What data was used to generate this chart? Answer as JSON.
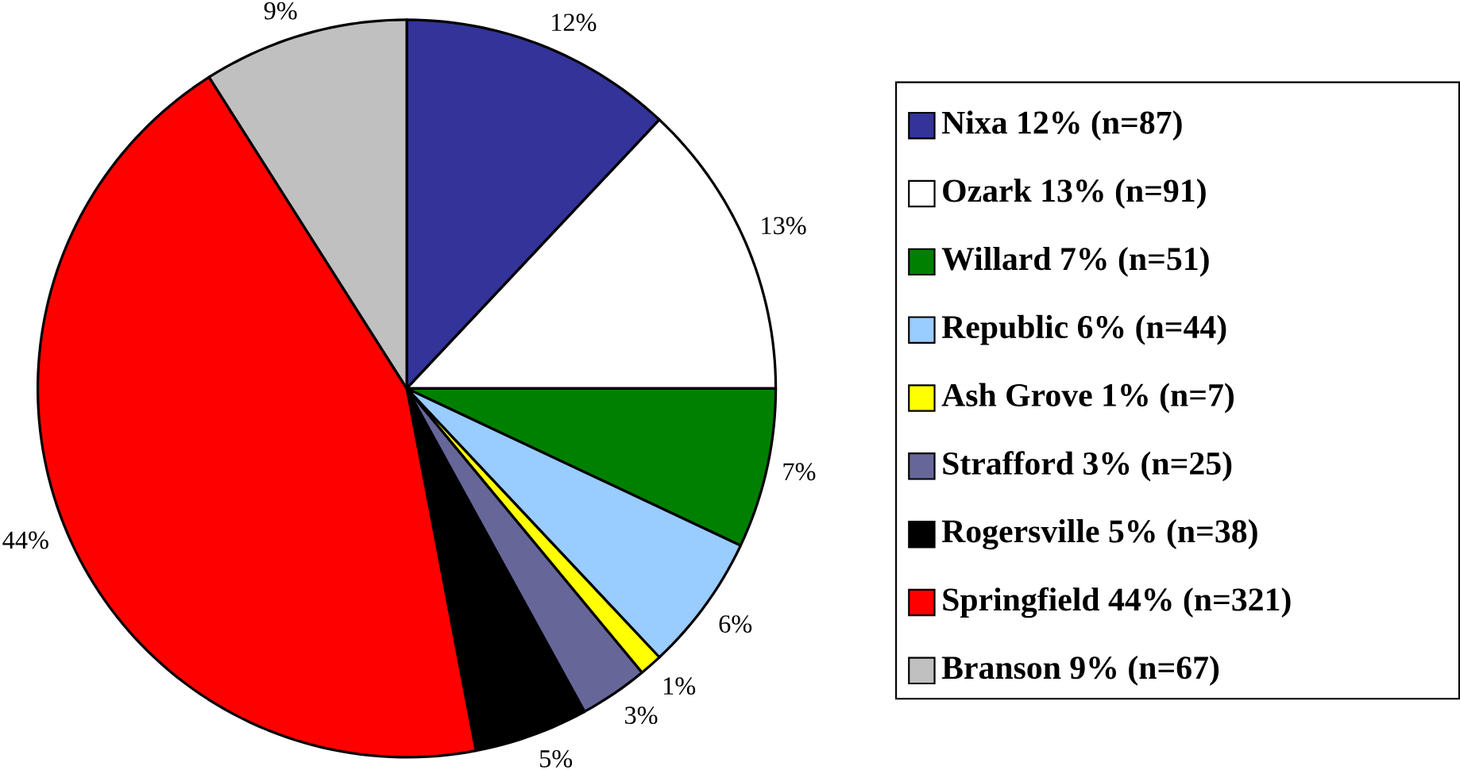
{
  "chart_data": {
    "type": "pie",
    "categories": [
      "Nixa 12% (n=87)",
      "Ozark 13% (n=91)",
      "Willard 7% (n=51)",
      "Republic 6% (n=44)",
      "Ash Grove 1% (n=7)",
      "Strafford 3% (n=25)",
      "Rogersville 5% (n=38)",
      "Springfield 44% (n=321)",
      "Branson 9% (n=67)"
    ],
    "values": [
      12,
      13,
      7,
      6,
      1,
      3,
      5,
      44,
      9
    ],
    "value_labels": [
      "12%",
      "13%",
      "7%",
      "6%",
      "1%",
      "3%",
      "5%",
      "44%",
      "9%"
    ],
    "colors": [
      "#333399",
      "#ffffff",
      "#008000",
      "#99ccff",
      "#ffff00",
      "#666699",
      "#000000",
      "#ff0000",
      "#c0c0c0"
    ],
    "legend": "right"
  }
}
